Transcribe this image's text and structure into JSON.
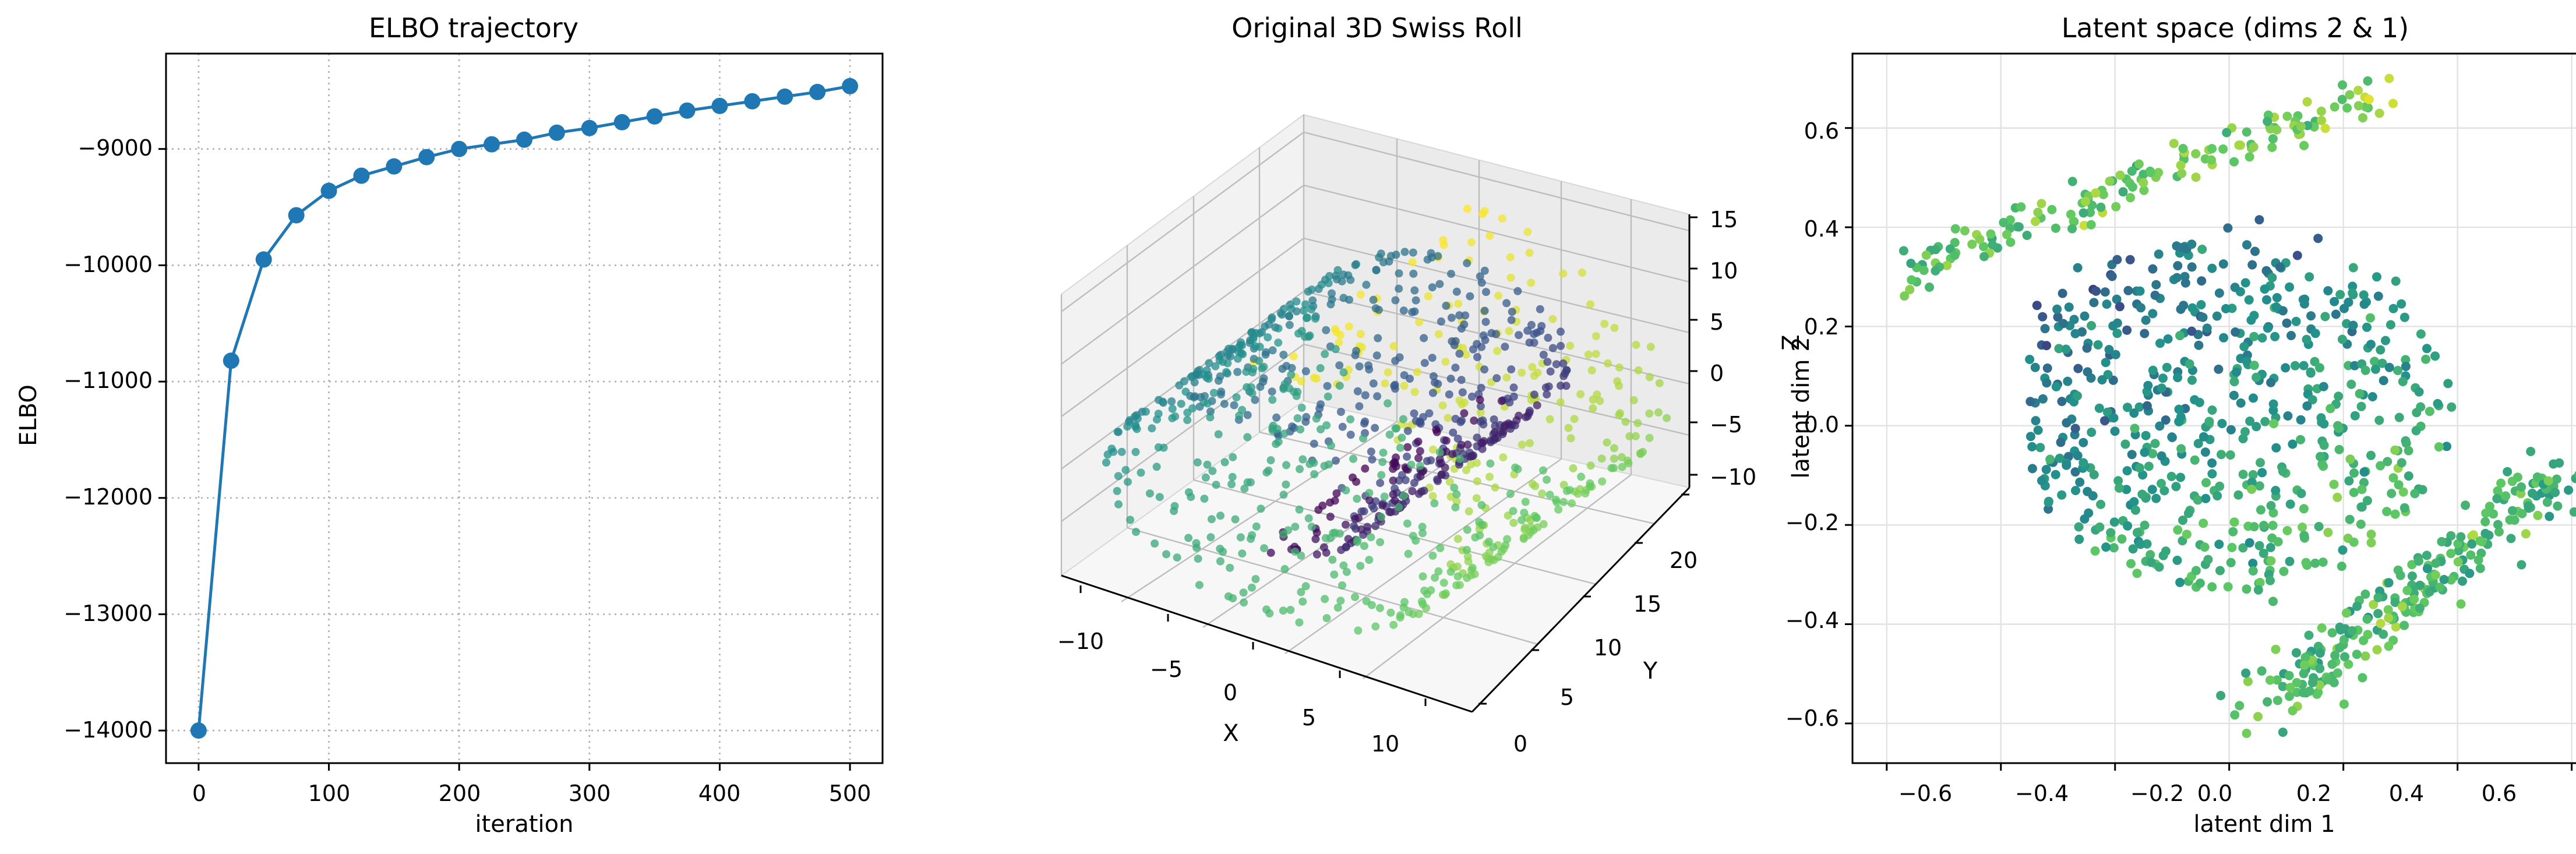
{
  "figure": {
    "left": {
      "title": "ELBO trajectory",
      "xlabel": "iteration",
      "ylabel": "ELBO",
      "xticks": [
        "0",
        "100",
        "200",
        "300",
        "400",
        "500"
      ],
      "yticks": [
        "−14000",
        "−13000",
        "−12000",
        "−11000",
        "−10000",
        "−9000"
      ]
    },
    "middle": {
      "title": "Original 3D Swiss Roll",
      "xlabel": "X",
      "ylabel": "Y",
      "zlabel": "Z",
      "xticks": [
        "−10",
        "−5",
        "0",
        "5",
        "10"
      ],
      "yticks": [
        "0",
        "5",
        "10",
        "15",
        "20"
      ],
      "zticks": [
        "−10",
        "−5",
        "0",
        "5",
        "10",
        "15"
      ]
    },
    "right": {
      "title": "Latent space (dims 2 & 1)",
      "xlabel": "latent dim 1",
      "ylabel": "latent dim 2",
      "xticks": [
        "−0.6",
        "−0.4",
        "−0.2",
        "0.0",
        "0.2",
        "0.4",
        "0.6"
      ],
      "yticks": [
        "−0.6",
        "−0.4",
        "−0.2",
        "0.0",
        "0.2",
        "0.4",
        "0.6"
      ]
    }
  },
  "colors": {
    "line": "#1f77b4",
    "viridis": [
      "#440154",
      "#3b528b",
      "#21918c",
      "#5ec962",
      "#fde725"
    ]
  },
  "chart_data": [
    {
      "type": "line",
      "title": "ELBO trajectory",
      "xlabel": "iteration",
      "ylabel": "ELBO",
      "x": [
        0,
        25,
        50,
        75,
        100,
        125,
        150,
        175,
        200,
        225,
        250,
        275,
        300,
        325,
        350,
        375,
        400,
        425,
        450,
        475,
        500
      ],
      "y": [
        -14000,
        -10820,
        -9950,
        -9570,
        -9360,
        -9230,
        -9150,
        -9070,
        -9000,
        -8960,
        -8920,
        -8860,
        -8820,
        -8770,
        -8720,
        -8670,
        -8630,
        -8590,
        -8550,
        -8510,
        -8460
      ],
      "xlim": [
        -25,
        525
      ],
      "ylim": [
        -14280,
        -8180
      ],
      "grid": true
    },
    {
      "type": "scatter",
      "title": "Original 3D Swiss Roll",
      "xlabel": "X",
      "ylabel": "Y",
      "zlabel": "Z",
      "xlim": [
        -11,
        14
      ],
      "ylim": [
        -1,
        22
      ],
      "zlim": [
        -12,
        15
      ],
      "note": "approximately 1000 points on a Swiss roll, coloured by position along the roll (viridis)"
    },
    {
      "type": "scatter",
      "title": "Latent space (dims 2 & 1)",
      "xlabel": "latent dim 1",
      "ylabel": "latent dim 2",
      "xlim": [
        -0.66,
        0.68
      ],
      "ylim": [
        -0.68,
        0.75
      ],
      "grid": true,
      "note": "approximately 1000 encoded points coloured by position along the roll (viridis)"
    }
  ]
}
